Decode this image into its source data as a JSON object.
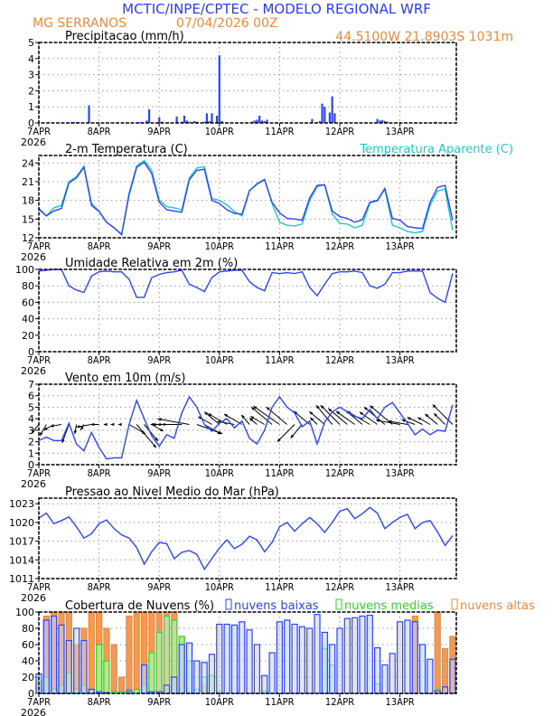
{
  "header": {
    "title": "MCTIC/INPE/CPTEC - MODELO REGIONAL WRF",
    "location": "MG SERRANOS",
    "run": "07/04/2026 00Z",
    "coords": "44.5100W 21.8903S 1031m"
  },
  "colors": {
    "title": "#2b3bff",
    "orange": "#f0883a",
    "blue": "#2b45ff",
    "cyan": "#22c8c8",
    "green": "#22dd22",
    "arrow": "#000000"
  },
  "x_axis": {
    "labels": [
      "7APR",
      "8APR",
      "9APR",
      "10APR",
      "11APR",
      "12APR",
      "13APR"
    ],
    "year": "2026",
    "hour_step": 3
  },
  "chart_data": [
    {
      "type": "bar",
      "title": "Precipitacao (mm/h)",
      "ylim": [
        0,
        5
      ],
      "yticks": [
        0,
        1,
        2,
        3,
        4,
        5
      ],
      "grid": true,
      "events_hour_value": [
        [
          13,
          0.05
        ],
        [
          14,
          0.05
        ],
        [
          15,
          0.05
        ],
        [
          16,
          0.04
        ],
        [
          20,
          1.1
        ],
        [
          40,
          0.05
        ],
        [
          41,
          0.05
        ],
        [
          43,
          0.15
        ],
        [
          44,
          0.85
        ],
        [
          48,
          0.35
        ],
        [
          49,
          0.08
        ],
        [
          55,
          0.4
        ],
        [
          57,
          0.08
        ],
        [
          58,
          0.45
        ],
        [
          59,
          0.15
        ],
        [
          60,
          0.08
        ],
        [
          62,
          0.12
        ],
        [
          63,
          0.08
        ],
        [
          66,
          0.08
        ],
        [
          67,
          0.6
        ],
        [
          68,
          0.12
        ],
        [
          69,
          0.6
        ],
        [
          71,
          0.45
        ],
        [
          72,
          4.2
        ],
        [
          73,
          0.12
        ],
        [
          85,
          0.08
        ],
        [
          86,
          0.15
        ],
        [
          87,
          0.2
        ],
        [
          88,
          0.45
        ],
        [
          89,
          0.15
        ],
        [
          90,
          0.12
        ],
        [
          91,
          0.2
        ],
        [
          109,
          0.25
        ],
        [
          112,
          0.12
        ],
        [
          113,
          1.2
        ],
        [
          114,
          1.0
        ],
        [
          116,
          0.65
        ],
        [
          117,
          1.65
        ],
        [
          118,
          0.6
        ],
        [
          135,
          0.25
        ],
        [
          136,
          0.15
        ],
        [
          137,
          0.18
        ],
        [
          138,
          0.12
        ],
        [
          139,
          0.08
        ],
        [
          158,
          0.07
        ]
      ]
    },
    {
      "type": "line",
      "title": "2-m Temperatura (C)",
      "ylim": [
        12,
        25.2
      ],
      "yticks": [
        12,
        15,
        18,
        21,
        24
      ],
      "grid": true,
      "series": [
        {
          "name": "2-m Temperatura (C)",
          "values": [
            16.7,
            15.5,
            16.3,
            16.7,
            20.8,
            21.6,
            23.3,
            17.2,
            16.2,
            14.5,
            13.6,
            12.5,
            18.9,
            23.3,
            24.1,
            22.3,
            17.7,
            16.5,
            16.3,
            16.1,
            21.3,
            22.8,
            23.0,
            18.0,
            17.5,
            16.5,
            15.9,
            15.8,
            19.6,
            20.6,
            21.3,
            17.7,
            16.0,
            15.1,
            15.0,
            14.8,
            18.4,
            20.4,
            20.5,
            16.3,
            15.4,
            15.1,
            14.5,
            14.9,
            17.7,
            18.0,
            19.9,
            15.1,
            14.8,
            13.8,
            13.6,
            13.5,
            17.7,
            20.1,
            20.4,
            14.8
          ]
        },
        {
          "name": "Temperatura Aparente (C)",
          "values": [
            16.5,
            15.5,
            16.8,
            17.2,
            21.0,
            21.8,
            23.5,
            17.5,
            16.3,
            14.5,
            13.6,
            12.6,
            19.2,
            23.5,
            24.4,
            22.8,
            18.0,
            17.0,
            16.8,
            16.5,
            21.6,
            23.2,
            23.4,
            18.3,
            18.0,
            17.3,
            16.2,
            15.5,
            19.5,
            20.7,
            21.4,
            17.5,
            14.5,
            14.0,
            13.9,
            14.2,
            18.0,
            20.2,
            20.5,
            15.8,
            14.3,
            14.2,
            13.6,
            14.0,
            17.6,
            17.9,
            19.8,
            14.0,
            13.6,
            13.0,
            12.8,
            13.0,
            17.2,
            19.5,
            19.8,
            13.2
          ]
        }
      ]
    },
    {
      "type": "line",
      "title": "Umidade Relativa em 2m (%)",
      "ylim": [
        0,
        100
      ],
      "yticks": [
        0,
        20,
        40,
        60,
        80,
        100
      ],
      "grid": true,
      "values": [
        98,
        99,
        100,
        100,
        80,
        75,
        72,
        92,
        97,
        98,
        97,
        97,
        88,
        66,
        66,
        90,
        94,
        96,
        97,
        99,
        82,
        78,
        73,
        90,
        97,
        98,
        99,
        99,
        85,
        78,
        74,
        96,
        95,
        96,
        95,
        97,
        78,
        68,
        82,
        95,
        97,
        97,
        98,
        96,
        80,
        77,
        82,
        96,
        96,
        98,
        98,
        98,
        72,
        65,
        60,
        95
      ]
    },
    {
      "type": "line",
      "title": "Vento em 10m (m/s)",
      "ylim": [
        0,
        7
      ],
      "yticks": [
        0,
        1,
        2,
        3,
        4,
        5,
        6,
        7
      ],
      "grid": true,
      "speed": [
        2.1,
        2.4,
        2.1,
        2.1,
        3.6,
        1.8,
        1.2,
        2.8,
        1.5,
        0.5,
        0.6,
        0.6,
        3.5,
        5.6,
        4.0,
        2.5,
        1.6,
        2.6,
        2.3,
        4.5,
        5.9,
        5.0,
        3.5,
        2.9,
        3.6,
        4.0,
        3.2,
        3.8,
        2.3,
        1.8,
        3.0,
        5.0,
        5.9,
        5.0,
        4.5,
        3.3,
        3.8,
        1.8,
        3.7,
        4.6,
        5.0,
        4.6,
        4.2,
        4.0,
        4.8,
        4.0,
        5.0,
        5.4,
        4.5,
        3.6,
        2.6,
        3.1,
        2.6,
        3.0,
        2.9,
        5.2
      ],
      "direction_from_deg": [
        40,
        30,
        60,
        80,
        20,
        10,
        30,
        80,
        90,
        90,
        90,
        90,
        300,
        320,
        320,
        300,
        90,
        90,
        90,
        90,
        100,
        290,
        300,
        120,
        130,
        120,
        100,
        120,
        140,
        130,
        120,
        130,
        125,
        130,
        45,
        40,
        130,
        135,
        130,
        140,
        135,
        130,
        125,
        130,
        120,
        125,
        130,
        130,
        100,
        100,
        110,
        115,
        120,
        130,
        135,
        135
      ]
    },
    {
      "type": "line",
      "title": "Pressao ao Nivel Medio do Mar (hPa)",
      "ylim": [
        1011,
        1023.9
      ],
      "yticks": [
        1011,
        1014,
        1017,
        1020,
        1023
      ],
      "grid": true,
      "values": [
        1020.7,
        1021.5,
        1019.8,
        1020.3,
        1020.9,
        1019.3,
        1017.5,
        1018.2,
        1019.8,
        1020.4,
        1019.0,
        1018.0,
        1017.5,
        1016.0,
        1013.3,
        1015.3,
        1016.8,
        1016.6,
        1014.2,
        1015.2,
        1015.5,
        1014.9,
        1012.5,
        1014.2,
        1015.9,
        1017.2,
        1015.8,
        1016.5,
        1017.8,
        1017.2,
        1015.3,
        1016.8,
        1019.3,
        1020.0,
        1018.6,
        1019.8,
        1020.8,
        1019.8,
        1018.4,
        1020.0,
        1021.8,
        1022.2,
        1020.6,
        1021.4,
        1022.4,
        1021.5,
        1019.0,
        1020.0,
        1020.8,
        1021.3,
        1019.0,
        1020.0,
        1020.3,
        1018.5,
        1016.3,
        1017.9
      ]
    },
    {
      "type": "bar",
      "title": "Cobertura de Nuvens (%)",
      "ylim": [
        0,
        100
      ],
      "yticks": [
        0,
        20,
        40,
        60,
        80,
        100
      ],
      "grid": true,
      "legend": "top",
      "series": [
        {
          "name": "nuvens altas",
          "values": [
            10,
            95,
            100,
            100,
            100,
            60,
            80,
            100,
            100,
            80,
            60,
            20,
            95,
            100,
            100,
            100,
            100,
            100,
            100,
            70,
            0,
            0,
            10,
            0,
            0,
            0,
            0,
            0,
            0,
            0,
            0,
            0,
            0,
            0,
            0,
            0,
            0,
            0,
            0,
            0,
            0,
            0,
            0,
            0,
            0,
            0,
            0,
            0,
            0,
            0,
            95,
            0,
            0,
            100,
            55,
            70
          ]
        },
        {
          "name": "nuvens medias",
          "values": [
            15,
            20,
            5,
            10,
            25,
            5,
            10,
            5,
            60,
            40,
            2,
            2,
            5,
            5,
            10,
            50,
            75,
            95,
            90,
            70,
            40,
            5,
            20,
            22,
            2,
            0,
            0,
            0,
            0,
            0,
            3,
            0,
            0,
            0,
            0,
            0,
            0,
            0,
            55,
            35,
            0,
            0,
            0,
            0,
            0,
            12,
            0,
            0,
            0,
            0,
            0,
            0,
            0,
            5,
            0,
            0
          ]
        },
        {
          "name": "nuvens baixas",
          "values": [
            24,
            90,
            95,
            84,
            65,
            80,
            65,
            5,
            2,
            1,
            0,
            0,
            3,
            0,
            35,
            2,
            2,
            10,
            20,
            60,
            62,
            40,
            38,
            48,
            85,
            85,
            84,
            88,
            78,
            60,
            22,
            50,
            88,
            90,
            85,
            82,
            80,
            97,
            75,
            60,
            80,
            92,
            93,
            95,
            96,
            56,
            35,
            49,
            88,
            90,
            88,
            60,
            42,
            3,
            8,
            42
          ]
        }
      ]
    }
  ]
}
